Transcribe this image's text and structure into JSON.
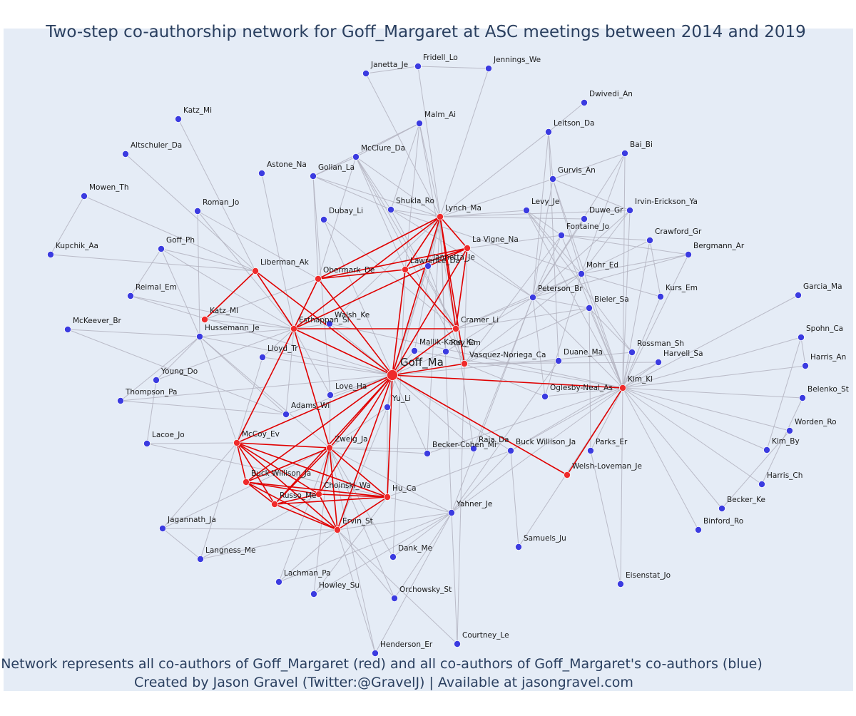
{
  "title": "Two-step co-authorship network for Goff_Margaret at ASC meetings between 2014 and 2019",
  "caption_line1": "Network represents all co-authors of Goff_Margaret (red) and all co-authors of Goff_Margaret's co-authors (blue)",
  "caption_line2": "Created by Jason Gravel (Twitter:@GravelJ) | Available at jasongravel.com",
  "colors": {
    "background": "#e5ecf6",
    "coauthor_node": "#ef2b2b",
    "second_step_node": "#3b3be0",
    "coauthor_edge": "#e00000",
    "second_step_edge": "#b3b3c0",
    "text": "#2a3f5f"
  },
  "center": "Goff_Ma",
  "red_nodes": [
    "Lynch_Ma",
    "La Vigne_Na",
    "Lawrence_Da",
    "Obermark_De",
    "Liberman_Ak",
    "Katz_Ml",
    "Esthappan_Sl",
    "Cramer_Li",
    "Vasquez-Noriega_Ca",
    "Kim_Kl",
    "Welsh-Loveman_Je",
    "McCoy_Ev",
    "Zweig_Ja",
    "Buck Willison_Ja",
    "Russo_Me",
    "Choinski_Wa",
    "Hu_Ca",
    "Ervin_St"
  ],
  "blue_nodes": [
    "Janetta_Je",
    "Fridell_Lo",
    "Jennings_We",
    "Dwivedi_An",
    "Katz_Mi",
    "Malm_Ai",
    "Leitson_Da",
    "Altschuler_Da",
    "McClure_Da",
    "Bai_Bi",
    "Astone_Na",
    "Golian_La",
    "Gurvis_An",
    "Mowen_Th",
    "Roman_Jo",
    "Shukla_Ro",
    "Irvin-Erickson_Ya",
    "Levy_Je",
    "Duwe_Gr",
    "Dubay_Li",
    "Fontaine_Jo",
    "Crawford_Gr",
    "Kupchik_Aa",
    "Goff_Ph",
    "Jannetta_Je",
    "Bergmann_Ar",
    "Mohr_Ed",
    "Reimal_Em",
    "Peterson_Br",
    "Kurs_Em",
    "Garcia_Ma",
    "Bieler_Sa",
    "McKeever_Br",
    "Walsh_Ke",
    "Hussemann_Je",
    "Mallik-Kane_Ka",
    "Ray_Em",
    "Spohn_Ca",
    "Rossman_Sh",
    "Lloyd_Tr",
    "Harris_An",
    "Harvell_Sa",
    "Duane_Ma",
    "Young_Do",
    "Love_Ha",
    "Belenko_St",
    "Oglesby-Neal_As",
    "Thompson_Pa",
    "Yu_Li",
    "Adams_Wi",
    "Worden_Ro",
    "Lacoe_Jo",
    "Raja_Da",
    "Kim_By",
    "Becker-Cohen_Mi",
    "Buck Willison_Ja2",
    "Parks_Er",
    "Harris_Ch",
    "Becker_Ke",
    "Jagannath_Ja",
    "Yahner_Je",
    "Binford_Ro",
    "Samuels_Ju",
    "Langness_Me",
    "Dank_Me",
    "Eisenstat_Jo",
    "Lachman_Pa",
    "Howley_Su",
    "Orchowsky_St",
    "Courtney_Le",
    "Henderson_Er"
  ],
  "labels": {
    "Goff_Ma": "Goff_Ma",
    "Lynch_Ma": "Lynch_Ma",
    "La Vigne_Na": "La Vigne_Na",
    "Lawrence_Da": "Lawrence_Da",
    "Obermark_De": "Obermark_De",
    "Liberman_Ak": "Liberman_Ak",
    "Katz_Ml": "Katz_Ml",
    "Esthappan_Sl": "Esthappan_Sl",
    "Cramer_Li": "Cramer_Li",
    "Vasquez-Noriega_Ca": "Vasquez-Noriega_Ca",
    "Kim_Kl": "Kim_Kl",
    "Welsh-Loveman_Je": "Welsh-Loveman_Je",
    "McCoy_Ev": "McCoy_Ev",
    "Zweig_Ja": "Zweig_Ja",
    "Buck Willison_Ja": "Buck Willison_Ja",
    "Russo_Me": "Russo_Me",
    "Choinski_Wa": "Choinski_Wa",
    "Hu_Ca": "Hu_Ca",
    "Ervin_St": "Ervin_St",
    "Janetta_Je": "Janetta_Je",
    "Fridell_Lo": "Fridell_Lo",
    "Jennings_We": "Jennings_We",
    "Dwivedi_An": "Dwivedi_An",
    "Katz_Mi": "Katz_Mi",
    "Malm_Ai": "Malm_Ai",
    "Leitson_Da": "Leitson_Da",
    "Altschuler_Da": "Altschuler_Da",
    "McClure_Da": "McClure_Da",
    "Bai_Bi": "Bai_Bi",
    "Astone_Na": "Astone_Na",
    "Golian_La": "Golian_La",
    "Gurvis_An": "Gurvis_An",
    "Mowen_Th": "Mowen_Th",
    "Roman_Jo": "Roman_Jo",
    "Shukla_Ro": "Shukla_Ro",
    "Irvin-Erickson_Ya": "Irvin-Erickson_Ya",
    "Levy_Je": "Levy_Je",
    "Duwe_Gr": "Duwe_Gr",
    "Dubay_Li": "Dubay_Li",
    "Fontaine_Jo": "Fontaine_Jo",
    "Crawford_Gr": "Crawford_Gr",
    "Kupchik_Aa": "Kupchik_Aa",
    "Goff_Ph": "Goff_Ph",
    "Jannetta_Je": "Jannetta_Je",
    "Bergmann_Ar": "Bergmann_Ar",
    "Mohr_Ed": "Mohr_Ed",
    "Reimal_Em": "Reimal_Em",
    "Peterson_Br": "Peterson_Br",
    "Kurs_Em": "Kurs_Em",
    "Garcia_Ma": "Garcia_Ma",
    "Bieler_Sa": "Bieler_Sa",
    "McKeever_Br": "McKeever_Br",
    "Walsh_Ke": "Walsh_Ke",
    "Hussemann_Je": "Hussemann_Je",
    "Mallik-Kane_Ka": "Mallik-Kane_Ka",
    "Ray_Em": "Ray_Em",
    "Spohn_Ca": "Spohn_Ca",
    "Rossman_Sh": "Rossman_Sh",
    "Lloyd_Tr": "Lloyd_Tr",
    "Harris_An": "Harris_An",
    "Harvell_Sa": "Harvell_Sa",
    "Duane_Ma": "Duane_Ma",
    "Young_Do": "Young_Do",
    "Love_Ha": "Love_Ha",
    "Belenko_St": "Belenko_St",
    "Oglesby-Neal_As": "Oglesby-Neal_As",
    "Thompson_Pa": "Thompson_Pa",
    "Yu_Li": "Yu_Li",
    "Adams_Wi": "Adams_Wi",
    "Worden_Ro": "Worden_Ro",
    "Lacoe_Jo": "Lacoe_Jo",
    "Raja_Da": "Raja_Da",
    "Kim_By": "Kim_By",
    "Becker-Cohen_Mi": "Becker-Cohen_Mi",
    "Buck Willison_Ja2": "Buck Willison_Ja",
    "Parks_Er": "Parks_Er",
    "Harris_Ch": "Harris_Ch",
    "Becker_Ke": "Becker_Ke",
    "Jagannath_Ja": "Jagannath_Ja",
    "Yahner_Je": "Yahner_Je",
    "Binford_Ro": "Binford_Ro",
    "Samuels_Ju": "Samuels_Ju",
    "Langness_Me": "Langness_Me",
    "Dank_Me": "Dank_Me",
    "Eisenstat_Jo": "Eisenstat_Jo",
    "Lachman_Pa": "Lachman_Pa",
    "Howley_Su": "Howley_Su",
    "Orchowsky_St": "Orchowsky_St",
    "Courtney_Le": "Courtney_Le",
    "Henderson_Er": "Henderson_Er"
  },
  "red_edges": [
    [
      "Goff_Ma",
      "Lynch_Ma"
    ],
    [
      "Goff_Ma",
      "La Vigne_Na"
    ],
    [
      "Goff_Ma",
      "Lawrence_Da"
    ],
    [
      "Goff_Ma",
      "Obermark_De"
    ],
    [
      "Goff_Ma",
      "Liberman_Ak"
    ],
    [
      "Goff_Ma",
      "Esthappan_Sl"
    ],
    [
      "Goff_Ma",
      "Cramer_Li"
    ],
    [
      "Goff_Ma",
      "Vasquez-Noriega_Ca"
    ],
    [
      "Goff_Ma",
      "Kim_Kl"
    ],
    [
      "Goff_Ma",
      "Welsh-Loveman_Je"
    ],
    [
      "Goff_Ma",
      "McCoy_Ev"
    ],
    [
      "Goff_Ma",
      "Zweig_Ja"
    ],
    [
      "Goff_Ma",
      "Buck Willison_Ja"
    ],
    [
      "Goff_Ma",
      "Russo_Me"
    ],
    [
      "Goff_Ma",
      "Choinski_Wa"
    ],
    [
      "Goff_Ma",
      "Hu_Ca"
    ],
    [
      "Goff_Ma",
      "Ervin_St"
    ],
    [
      "Lynch_Ma",
      "La Vigne_Na"
    ],
    [
      "Lynch_Ma",
      "Lawrence_Da"
    ],
    [
      "Lynch_Ma",
      "Obermark_De"
    ],
    [
      "Lynch_Ma",
      "Cramer_Li"
    ],
    [
      "Lynch_Ma",
      "Vasquez-Noriega_Ca"
    ],
    [
      "Lynch_Ma",
      "Esthappan_Sl"
    ],
    [
      "La Vigne_Na",
      "Lawrence_Da"
    ],
    [
      "La Vigne_Na",
      "Cramer_Li"
    ],
    [
      "La Vigne_Na",
      "Obermark_De"
    ],
    [
      "La Vigne_Na",
      "Esthappan_Sl"
    ],
    [
      "Lawrence_Da",
      "Cramer_Li"
    ],
    [
      "Obermark_De",
      "Esthappan_Sl"
    ],
    [
      "Obermark_De",
      "Lawrence_Da"
    ],
    [
      "Liberman_Ak",
      "Katz_Ml"
    ],
    [
      "Liberman_Ak",
      "Esthappan_Sl"
    ],
    [
      "Esthappan_Sl",
      "Cramer_Li"
    ],
    [
      "Esthappan_Sl",
      "McCoy_Ev"
    ],
    [
      "Esthappan_Sl",
      "Zweig_Ja"
    ],
    [
      "Kim_Kl",
      "Welsh-Loveman_Je"
    ],
    [
      "McCoy_Ev",
      "Zweig_Ja"
    ],
    [
      "McCoy_Ev",
      "Buck Willison_Ja"
    ],
    [
      "McCoy_Ev",
      "Russo_Me"
    ],
    [
      "McCoy_Ev",
      "Choinski_Wa"
    ],
    [
      "McCoy_Ev",
      "Hu_Ca"
    ],
    [
      "McCoy_Ev",
      "Ervin_St"
    ],
    [
      "Zweig_Ja",
      "Buck Willison_Ja"
    ],
    [
      "Zweig_Ja",
      "Russo_Me"
    ],
    [
      "Zweig_Ja",
      "Choinski_Wa"
    ],
    [
      "Zweig_Ja",
      "Hu_Ca"
    ],
    [
      "Zweig_Ja",
      "Ervin_St"
    ],
    [
      "Buck Willison_Ja",
      "Russo_Me"
    ],
    [
      "Buck Willison_Ja",
      "Choinski_Wa"
    ],
    [
      "Buck Willison_Ja",
      "Hu_Ca"
    ],
    [
      "Buck Willison_Ja",
      "Ervin_St"
    ],
    [
      "Russo_Me",
      "Choinski_Wa"
    ],
    [
      "Russo_Me",
      "Hu_Ca"
    ],
    [
      "Russo_Me",
      "Ervin_St"
    ],
    [
      "Choinski_Wa",
      "Hu_Ca"
    ],
    [
      "Choinski_Wa",
      "Ervin_St"
    ],
    [
      "Hu_Ca",
      "Ervin_St"
    ]
  ],
  "gray_edges": [
    [
      "Janetta_Je",
      "Lynch_Ma"
    ],
    [
      "Fridell_Lo",
      "Jennings_We"
    ],
    [
      "Fridell_Lo",
      "Lynch_Ma"
    ],
    [
      "Jennings_We",
      "Lynch_Ma"
    ],
    [
      "Fridell_Lo",
      "Janetta_Je"
    ],
    [
      "Malm_Ai",
      "McClure_Da"
    ],
    [
      "Malm_Ai",
      "Golian_La"
    ],
    [
      "Malm_Ai",
      "Lynch_Ma"
    ],
    [
      "Malm_Ai",
      "Lawrence_Da"
    ],
    [
      "Malm_Ai",
      "Cramer_Li"
    ],
    [
      "Malm_Ai",
      "Shukla_Ro"
    ],
    [
      "McClure_Da",
      "Golian_La"
    ],
    [
      "McClure_Da",
      "Lynch_Ma"
    ],
    [
      "McClure_Da",
      "Lawrence_Da"
    ],
    [
      "McClure_Da",
      "Shukla_Ro"
    ],
    [
      "McClure_Da",
      "Cramer_Li"
    ],
    [
      "McClure_Da",
      "Vasquez-Noriega_Ca"
    ],
    [
      "McClure_Da",
      "Obermark_De"
    ],
    [
      "Golian_La",
      "Lynch_Ma"
    ],
    [
      "Golian_La",
      "Obermark_De"
    ],
    [
      "Golian_La",
      "Love_Ha"
    ],
    [
      "Golian_La",
      "Shukla_Ro"
    ],
    [
      "Shukla_Ro",
      "Lynch_Ma"
    ],
    [
      "Shukla_Ro",
      "Mohr_Ed"
    ],
    [
      "Shukla_Ro",
      "Cramer_Li"
    ],
    [
      "Shukla_Ro",
      "Peterson_Br"
    ],
    [
      "Katz_Mi",
      "Liberman_Ak"
    ],
    [
      "Altschuler_Da",
      "Liberman_Ak"
    ],
    [
      "Mowen_Th",
      "Kupchik_Aa"
    ],
    [
      "Mowen_Th",
      "Liberman_Ak"
    ],
    [
      "Roman_Jo",
      "Obermark_De"
    ],
    [
      "Roman_Jo",
      "Hussemann_Je"
    ],
    [
      "Roman_Jo",
      "Esthappan_Sl"
    ],
    [
      "Astone_Na",
      "Esthappan_Sl"
    ],
    [
      "Kupchik_Aa",
      "Liberman_Ak"
    ],
    [
      "Goff_Ph",
      "Reimal_Em"
    ],
    [
      "Goff_Ph",
      "Liberman_Ak"
    ],
    [
      "Goff_Ph",
      "Esthappan_Sl"
    ],
    [
      "Goff_Ph",
      "Hussemann_Je"
    ],
    [
      "Reimal_Em",
      "Esthappan_Sl"
    ],
    [
      "Reimal_Em",
      "Goff_Ma"
    ],
    [
      "McKeever_Br",
      "Hussemann_Je"
    ],
    [
      "McKeever_Br",
      "Adams_Wi"
    ],
    [
      "Dubay_Li",
      "Cramer_Li"
    ],
    [
      "Dubay_Li",
      "Goff_Ma"
    ],
    [
      "Dwivedi_An",
      "Leitson_Da"
    ],
    [
      "Leitson_Da",
      "Gurvis_An"
    ],
    [
      "Leitson_Da",
      "Peterson_Br"
    ],
    [
      "Leitson_Da",
      "Lynch_Ma"
    ],
    [
      "Leitson_Da",
      "Duane_Ma"
    ],
    [
      "Bai_Bi",
      "Gurvis_An"
    ],
    [
      "Bai_Bi",
      "Kim_Kl"
    ],
    [
      "Bai_Bi",
      "Mohr_Ed"
    ],
    [
      "Bai_Bi",
      "Peterson_Br"
    ],
    [
      "Gurvis_An",
      "Lynch_Ma"
    ],
    [
      "Gurvis_An",
      "Peterson_Br"
    ],
    [
      "Gurvis_An",
      "Irvin-Erickson_Ya"
    ],
    [
      "Gurvis_An",
      "Kim_Kl"
    ],
    [
      "Gurvis_An",
      "Mohr_Ed"
    ],
    [
      "Irvin-Erickson_Ya",
      "Lynch_Ma"
    ],
    [
      "Irvin-Erickson_Ya",
      "Peterson_Br"
    ],
    [
      "Irvin-Erickson_Ya",
      "Kim_Kl"
    ],
    [
      "Irvin-Erickson_Ya",
      "Mohr_Ed"
    ],
    [
      "Levy_Je",
      "Lynch_Ma"
    ],
    [
      "Levy_Je",
      "Mohr_Ed"
    ],
    [
      "Levy_Je",
      "Kim_Kl"
    ],
    [
      "Levy_Je",
      "Fontaine_Jo"
    ],
    [
      "Levy_Je",
      "Rossman_Sh"
    ],
    [
      "Duwe_Gr",
      "Lynch_Ma"
    ],
    [
      "Duwe_Gr",
      "Peterson_Br"
    ],
    [
      "Fontaine_Jo",
      "La Vigne_Na"
    ],
    [
      "Fontaine_Jo",
      "Peterson_Br"
    ],
    [
      "Fontaine_Jo",
      "Bergmann_Ar"
    ],
    [
      "Fontaine_Jo",
      "Kim_Kl"
    ],
    [
      "Fontaine_Jo",
      "Crawford_Gr"
    ],
    [
      "Fontaine_Jo",
      "Vasquez-Noriega_Ca"
    ],
    [
      "Crawford_Gr",
      "Peterson_Br"
    ],
    [
      "Crawford_Gr",
      "Kurs_Em"
    ],
    [
      "Crawford_Gr",
      "Kim_Kl"
    ],
    [
      "Bergmann_Ar",
      "Mohr_Ed"
    ],
    [
      "Bergmann_Ar",
      "Peterson_Br"
    ],
    [
      "Bergmann_Ar",
      "Kim_Kl"
    ],
    [
      "Mohr_Ed",
      "Kim_Kl"
    ],
    [
      "Mohr_Ed",
      "Cramer_Li"
    ],
    [
      "Mohr_Ed",
      "Vasquez-Noriega_Ca"
    ],
    [
      "Mohr_Ed",
      "Kurs_Em"
    ],
    [
      "Peterson_Br",
      "Cramer_Li"
    ],
    [
      "Peterson_Br",
      "La Vigne_Na"
    ],
    [
      "Peterson_Br",
      "Kim_Kl"
    ],
    [
      "Peterson_Br",
      "Bieler_Sa"
    ],
    [
      "Peterson_Br",
      "Yahner_Je"
    ],
    [
      "Peterson_Br",
      "Raja_Da"
    ],
    [
      "Bieler_Sa",
      "Kim_Kl"
    ],
    [
      "Bieler_Sa",
      "Vasquez-Noriega_Ca"
    ],
    [
      "Bieler_Sa",
      "Cramer_Li"
    ],
    [
      "Bieler_Sa",
      "Parks_Er"
    ],
    [
      "Bieler_Sa",
      "Rossman_Sh"
    ],
    [
      "Kurs_Em",
      "Kim_Kl"
    ],
    [
      "Garcia_Ma",
      "Kim_Kl"
    ],
    [
      "Spohn_Ca",
      "Kim_Kl"
    ],
    [
      "Spohn_Ca",
      "Harris_An"
    ],
    [
      "Spohn_Ca",
      "Kim_By"
    ],
    [
      "Harris_An",
      "Kim_Kl"
    ],
    [
      "Belenko_St",
      "Kim_Kl"
    ],
    [
      "Belenko_St",
      "Harris_Ch"
    ],
    [
      "Worden_Ro",
      "Kim_Kl"
    ],
    [
      "Worden_Ro",
      "Becker_Ke"
    ],
    [
      "Kim_By",
      "Kim_Kl"
    ],
    [
      "Harris_Ch",
      "Kim_Kl"
    ],
    [
      "Becker_Ke",
      "Kim_Kl"
    ],
    [
      "Binford_Ro",
      "Kim_Kl"
    ],
    [
      "Eisenstat_Jo",
      "Kim_Kl"
    ],
    [
      "Samuels_Ju",
      "Kim_Kl"
    ],
    [
      "Rossman_Sh",
      "Kim_Kl"
    ],
    [
      "Rossman_Sh",
      "Goff_Ma"
    ],
    [
      "Harvell_Sa",
      "Kim_Kl"
    ],
    [
      "Harvell_Sa",
      "Vasquez-Noriega_Ca"
    ],
    [
      "Harvell_Sa",
      "Buck Willison_Ja2"
    ],
    [
      "Duane_Ma",
      "Yahner_Je"
    ],
    [
      "Duane_Ma",
      "Vasquez-Noriega_Ca"
    ],
    [
      "Oglesby-Neal_As",
      "Kim_Kl"
    ],
    [
      "Oglesby-Neal_As",
      "Vasquez-Noriega_Ca"
    ],
    [
      "Oglesby-Neal_As",
      "Peterson_Br"
    ],
    [
      "Oglesby-Neal_As",
      "Mohr_Ed"
    ],
    [
      "Parks_Er",
      "Kim_Kl"
    ],
    [
      "Parks_Er",
      "Eisenstat_Jo"
    ],
    [
      "Buck Willison_Ja2",
      "Kim_Kl"
    ],
    [
      "Buck Willison_Ja2",
      "Goff_Ma"
    ],
    [
      "Buck Willison_Ja2",
      "Samuels_Ju"
    ],
    [
      "Buck Willison_Ja2",
      "Yahner_Je"
    ],
    [
      "Buck Willison_Ja2",
      "Hu_Ca"
    ],
    [
      "Raja_Da",
      "Zweig_Ja"
    ],
    [
      "Raja_Da",
      "Cramer_Li"
    ],
    [
      "Raja_Da",
      "Goff_Ma"
    ],
    [
      "Becker-Cohen_Mi",
      "Goff_Ma"
    ],
    [
      "Becker-Cohen_Mi",
      "Zweig_Ja"
    ],
    [
      "Becker-Cohen_Mi",
      "Lynch_Ma"
    ],
    [
      "Becker-Cohen_Mi",
      "Kim_Kl"
    ],
    [
      "Walsh_Ke",
      "Goff_Ma"
    ],
    [
      "Walsh_Ke",
      "Esthappan_Sl"
    ],
    [
      "Walsh_Ke",
      "Lynch_Ma"
    ],
    [
      "Walsh_Ke",
      "Kim_Kl"
    ],
    [
      "Hussemann_Je",
      "Esthappan_Sl"
    ],
    [
      "Hussemann_Je",
      "Goff_Ma"
    ],
    [
      "Hussemann_Je",
      "Young_Do"
    ],
    [
      "Hussemann_Je",
      "Thompson_Pa"
    ],
    [
      "Hussemann_Je",
      "McCoy_Ev"
    ],
    [
      "Hussemann_Je",
      "Adams_Wi"
    ],
    [
      "Hussemann_Je",
      "Zweig_Ja"
    ],
    [
      "Mallik-Kane_Ka",
      "Goff_Ma"
    ],
    [
      "Mallik-Kane_Ka",
      "Lynch_Ma"
    ],
    [
      "Mallik-Kane_Ka",
      "Kim_Kl"
    ],
    [
      "Ray_Em",
      "Goff_Ma"
    ],
    [
      "Ray_Em",
      "Lynch_Ma"
    ],
    [
      "Ray_Em",
      "Peterson_Br"
    ],
    [
      "Jannetta_Je",
      "Lynch_Ma"
    ],
    [
      "Jannetta_Je",
      "Goff_Ma"
    ],
    [
      "Jannetta_Je",
      "Vasquez-Noriega_Ca"
    ],
    [
      "Lloyd_Tr",
      "Esthappan_Sl"
    ],
    [
      "Lloyd_Tr",
      "Goff_Ma"
    ],
    [
      "Lloyd_Tr",
      "McCoy_Ev"
    ],
    [
      "Young_Do",
      "Lacoe_Jo"
    ],
    [
      "Young_Do",
      "Esthappan_Sl"
    ],
    [
      "Love_Ha",
      "Zweig_Ja"
    ],
    [
      "Love_Ha",
      "Goff_Ma"
    ],
    [
      "Love_Ha",
      "Esthappan_Sl"
    ],
    [
      "Thompson_Pa",
      "Adams_Wi"
    ],
    [
      "Thompson_Pa",
      "Goff_Ma"
    ],
    [
      "Yu_Li",
      "Goff_Ma"
    ],
    [
      "Yu_Li",
      "Zweig_Ja"
    ],
    [
      "Yu_Li",
      "Hu_Ca"
    ],
    [
      "Yu_Li",
      "Ervin_St"
    ],
    [
      "Yu_Li",
      "Lynch_Ma"
    ],
    [
      "Adams_Wi",
      "Goff_Ma"
    ],
    [
      "Adams_Wi",
      "Esthappan_Sl"
    ],
    [
      "Lacoe_Jo",
      "McCoy_Ev"
    ],
    [
      "Lacoe_Jo",
      "Hu_Ca"
    ],
    [
      "Jagannath_Ja",
      "Langness_Me"
    ],
    [
      "Jagannath_Ja",
      "McCoy_Ev"
    ],
    [
      "Jagannath_Ja",
      "Zweig_Ja"
    ],
    [
      "Jagannath_Ja",
      "Ervin_St"
    ],
    [
      "Langness_Me",
      "McCoy_Ev"
    ],
    [
      "Langness_Me",
      "Ervin_St"
    ],
    [
      "Langness_Me",
      "Choinski_Wa"
    ],
    [
      "Yahner_Je",
      "Ervin_St"
    ],
    [
      "Yahner_Je",
      "Hu_Ca"
    ],
    [
      "Yahner_Je",
      "Lynch_Ma"
    ],
    [
      "Yahner_Je",
      "Courtney_Le"
    ],
    [
      "Yahner_Je",
      "Henderson_Er"
    ],
    [
      "Yahner_Je",
      "Dank_Me"
    ],
    [
      "Yahner_Je",
      "Orchowsky_St"
    ],
    [
      "Yahner_Je",
      "Howley_Su"
    ],
    [
      "Yahner_Je",
      "Lachman_Pa"
    ],
    [
      "Yahner_Je",
      "Zweig_Ja"
    ],
    [
      "Yahner_Je",
      "Kim_Kl"
    ],
    [
      "Dank_Me",
      "Zweig_Ja"
    ],
    [
      "Dank_Me",
      "Lawrence_Da"
    ],
    [
      "Lachman_Pa",
      "Zweig_Ja"
    ],
    [
      "Lachman_Pa",
      "Ervin_St"
    ],
    [
      "Howley_Su",
      "Zweig_Ja"
    ],
    [
      "Howley_Su",
      "Hu_Ca"
    ],
    [
      "Orchowsky_St",
      "Zweig_Ja"
    ],
    [
      "Orchowsky_St",
      "Ervin_St"
    ],
    [
      "Courtney_Le",
      "La Vigne_Na"
    ],
    [
      "Courtney_Le",
      "Ervin_St"
    ],
    [
      "Henderson_Er",
      "Ervin_St"
    ],
    [
      "Henderson_Er",
      "Zweig_Ja"
    ],
    [
      "Katz_Ml",
      "Esthappan_Sl"
    ],
    [
      "Katz_Ml",
      "Obermark_De"
    ]
  ]
}
